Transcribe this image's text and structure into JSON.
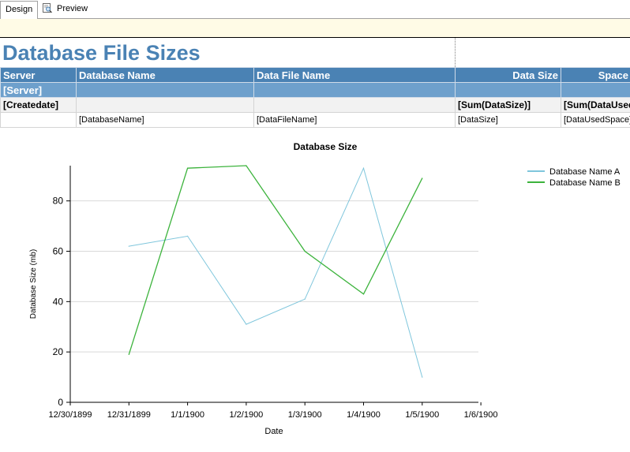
{
  "tabs": [
    {
      "label": "Design"
    },
    {
      "label": "Preview"
    }
  ],
  "report": {
    "title": "Database File Sizes",
    "columns": [
      "Server",
      "Database Name",
      "Data File Name",
      "Data Size",
      "Space U"
    ],
    "group_row": [
      "[Server]",
      "",
      "",
      "",
      ""
    ],
    "summary_row": [
      "[Createdate]",
      "",
      "",
      "[Sum(DataSize)]",
      "[Sum(DataUsed"
    ],
    "detail_row": [
      "",
      "[DatabaseName]",
      "[DataFileName]",
      "[DataSize]",
      "[DataUsedSpace]"
    ]
  },
  "chart_data": {
    "type": "line",
    "title": "Database Size",
    "xlabel": "Date",
    "ylabel": "Database Size (mb)",
    "x_ticks": [
      "12/30/1899",
      "12/31/1899",
      "1/1/1900",
      "1/2/1900",
      "1/3/1900",
      "1/4/1900",
      "1/5/1900",
      "1/6/1900"
    ],
    "x": [
      "12/31/1899",
      "1/1/1900",
      "1/2/1900",
      "1/3/1900",
      "1/4/1900",
      "1/5/1900"
    ],
    "y_ticks": [
      0,
      20,
      40,
      60,
      80
    ],
    "ylim": [
      0,
      94
    ],
    "grid": true,
    "legend_position": "top-right",
    "series": [
      {
        "name": "Database Name A",
        "color": "#7fc6dc",
        "values": [
          62,
          66,
          31,
          41,
          93,
          10
        ]
      },
      {
        "name": "Database Name B",
        "color": "#3cb33c",
        "values": [
          19,
          93,
          94,
          60,
          43,
          89
        ]
      }
    ]
  }
}
